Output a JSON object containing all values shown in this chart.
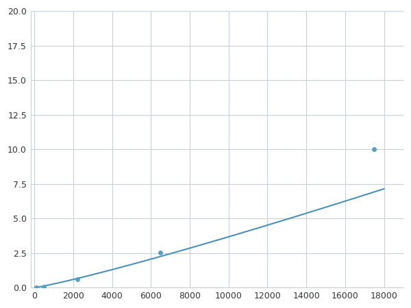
{
  "x_points": [
    100,
    500,
    900,
    2200,
    6500,
    17500
  ],
  "y_points": [
    0.04,
    0.08,
    0.13,
    0.6,
    2.55,
    10.0
  ],
  "line_color": "#4a90b8",
  "marker_color": "#5a9fc0",
  "marker_size": 5,
  "line_width": 1.5,
  "xlim": [
    -200,
    19000
  ],
  "ylim": [
    0,
    20.0
  ],
  "xticks": [
    0,
    2000,
    4000,
    6000,
    8000,
    10000,
    12000,
    14000,
    16000,
    18000
  ],
  "yticks": [
    0.0,
    2.5,
    5.0,
    7.5,
    10.0,
    12.5,
    15.0,
    17.5,
    20.0
  ],
  "grid_color": "#c8d0d8",
  "background_color": "#ffffff",
  "marker_indices": [
    0,
    1,
    3,
    4,
    5
  ]
}
